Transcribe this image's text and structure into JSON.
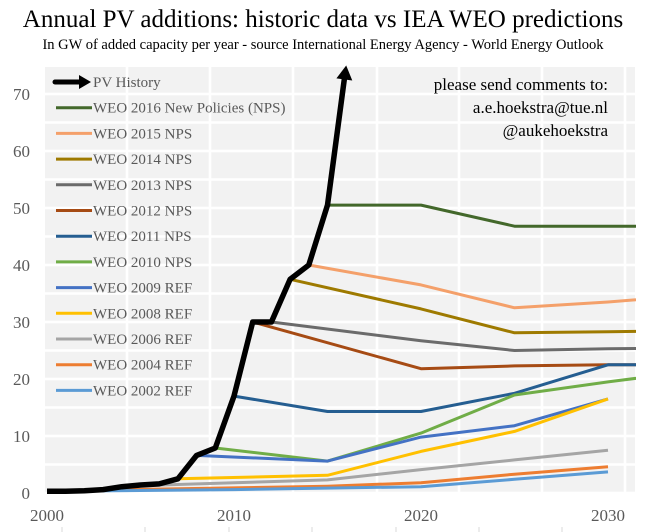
{
  "chart_data": {
    "type": "line",
    "title": "Annual PV additions: historic data vs IEA WEO predictions",
    "subtitle": "In GW of added capacity per year - source International Energy Agency - World Energy Outlook",
    "xlabel": "",
    "ylabel": "",
    "xlim": [
      2000,
      2031.4
    ],
    "ylim": [
      0,
      74
    ],
    "x_ticks": [
      2000,
      2010,
      2020,
      2030
    ],
    "x_tick_labels": [
      "2000",
      "2010",
      "2020",
      "2030"
    ],
    "y_ticks": [
      0,
      10,
      20,
      30,
      40,
      50,
      60,
      70
    ],
    "y_tick_labels": [
      "0",
      "10",
      "20",
      "30",
      "40",
      "50",
      "60",
      "70"
    ],
    "grid": true,
    "legend_position": "top-left",
    "annotation": {
      "lines": [
        "please send comments to:",
        "a.e.hoekstra@tue.nl",
        "@aukehoekstra"
      ],
      "position": "top-right"
    },
    "series": [
      {
        "name": "PV History",
        "color": "#000000",
        "style": "arrow",
        "points": [
          [
            2000,
            0.3
          ],
          [
            2001,
            0.3
          ],
          [
            2002,
            0.4
          ],
          [
            2003,
            0.6
          ],
          [
            2004,
            1.1
          ],
          [
            2005,
            1.4
          ],
          [
            2006,
            1.6
          ],
          [
            2007,
            2.5
          ],
          [
            2008,
            6.6
          ],
          [
            2009,
            7.9
          ],
          [
            2010,
            17
          ],
          [
            2011,
            30
          ],
          [
            2012,
            30
          ],
          [
            2013,
            37.5
          ],
          [
            2014,
            40
          ],
          [
            2015,
            50.5
          ],
          [
            2016,
            75
          ]
        ]
      },
      {
        "name": "WEO 2016 New Policies (NPS)",
        "color": "#43682B",
        "points": [
          [
            2015,
            50.5
          ],
          [
            2020,
            50.5
          ],
          [
            2025,
            46.8
          ],
          [
            2030,
            46.8
          ],
          [
            2035,
            46.8
          ]
        ]
      },
      {
        "name": "WEO 2015 NPS",
        "color": "#F4A06A",
        "points": [
          [
            2014,
            40
          ],
          [
            2020,
            36.5
          ],
          [
            2025,
            32.5
          ],
          [
            2030,
            33.5
          ],
          [
            2035,
            34.8
          ]
        ]
      },
      {
        "name": "WEO 2014 NPS",
        "color": "#9E7A00",
        "points": [
          [
            2013,
            37.5
          ],
          [
            2020,
            32.3
          ],
          [
            2025,
            28.1
          ],
          [
            2030,
            28.3
          ],
          [
            2035,
            28.5
          ]
        ]
      },
      {
        "name": "WEO 2013 NPS",
        "color": "#6B6B6B",
        "points": [
          [
            2012,
            30
          ],
          [
            2020,
            26.7
          ],
          [
            2025,
            25.0
          ],
          [
            2030,
            25.3
          ],
          [
            2035,
            25.5
          ]
        ]
      },
      {
        "name": "WEO 2012 NPS",
        "color": "#A64B14",
        "points": [
          [
            2011,
            30
          ],
          [
            2020,
            21.8
          ],
          [
            2025,
            22.3
          ],
          [
            2030,
            22.5
          ],
          [
            2035,
            22.5
          ]
        ]
      },
      {
        "name": "WEO 2011 NPS",
        "color": "#255E91",
        "points": [
          [
            2010,
            17
          ],
          [
            2015,
            14.3
          ],
          [
            2020,
            14.3
          ],
          [
            2025,
            17.5
          ],
          [
            2030,
            22.5
          ],
          [
            2035,
            22.5
          ]
        ]
      },
      {
        "name": "WEO 2010 NPS",
        "color": "#70AD47",
        "points": [
          [
            2009,
            7.9
          ],
          [
            2015,
            5.6
          ],
          [
            2020,
            10.5
          ],
          [
            2025,
            17.2
          ],
          [
            2030,
            19.5
          ],
          [
            2035,
            21.6
          ]
        ]
      },
      {
        "name": "WEO 2009 REF",
        "color": "#4472C4",
        "points": [
          [
            2008,
            6.6
          ],
          [
            2015,
            5.6
          ],
          [
            2020,
            9.8
          ],
          [
            2025,
            11.8
          ],
          [
            2030,
            16.5
          ]
        ]
      },
      {
        "name": "WEO 2008 REF",
        "color": "#FFC000",
        "points": [
          [
            2007,
            2.5
          ],
          [
            2015,
            3.1
          ],
          [
            2020,
            7.3
          ],
          [
            2025,
            10.8
          ],
          [
            2030,
            16.5
          ]
        ]
      },
      {
        "name": "WEO 2006 REF",
        "color": "#A5A5A5",
        "points": [
          [
            2005,
            1.3
          ],
          [
            2015,
            2.3
          ],
          [
            2020,
            4.1
          ],
          [
            2025,
            5.8
          ],
          [
            2030,
            7.5
          ]
        ]
      },
      {
        "name": "WEO 2004 REF",
        "color": "#ED7D31",
        "points": [
          [
            2003,
            0.5
          ],
          [
            2015,
            1.2
          ],
          [
            2020,
            1.8
          ],
          [
            2025,
            3.3
          ],
          [
            2030,
            4.6
          ]
        ]
      },
      {
        "name": "WEO 2002 REF",
        "color": "#5B9BD5",
        "points": [
          [
            2000,
            0.3
          ],
          [
            2010,
            0.6
          ],
          [
            2020,
            1.1
          ],
          [
            2025,
            2.4
          ],
          [
            2030,
            3.7
          ]
        ]
      }
    ]
  }
}
